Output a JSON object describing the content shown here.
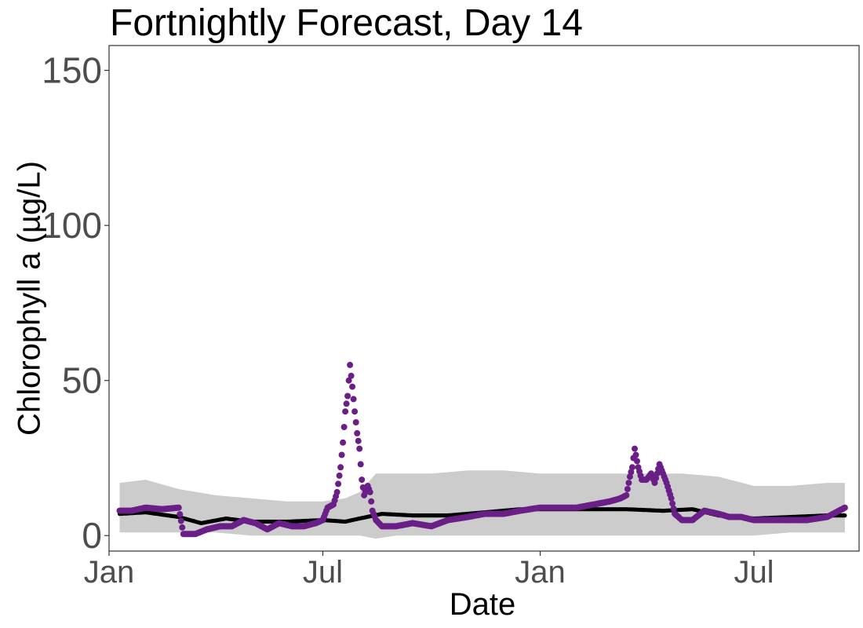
{
  "chart_data": {
    "type": "scatter",
    "title": "Fortnightly Forecast, Day 14",
    "xlabel": "Date",
    "ylabel": "Chlorophyll a (µg/L)",
    "x_range": [
      "2022-01-01",
      "2023-09-28"
    ],
    "ylim": [
      -5,
      158
    ],
    "grid": false,
    "legend": "none",
    "x_ticks": [
      {
        "date": "2022-01-01",
        "label": "Jan"
      },
      {
        "date": "2022-07-01",
        "label": "Jul"
      },
      {
        "date": "2023-01-01",
        "label": "Jan"
      },
      {
        "date": "2023-07-01",
        "label": "Jul"
      }
    ],
    "y_ticks": [
      0,
      50,
      100,
      150
    ],
    "colors": {
      "interval": "#cccccc",
      "forecast_mean": "#000000",
      "observed": "#6a1f87"
    },
    "series": [
      {
        "kind": "interval",
        "x": [
          "2022-01-10",
          "2022-02-01",
          "2022-03-01",
          "2022-04-01",
          "2022-05-01",
          "2022-06-01",
          "2022-07-01",
          "2022-07-20",
          "2022-08-01",
          "2022-08-15",
          "2022-09-01",
          "2022-10-01",
          "2022-11-01",
          "2022-12-01",
          "2023-01-01",
          "2023-02-01",
          "2023-03-01",
          "2023-04-01",
          "2023-05-01",
          "2023-06-01",
          "2023-07-01",
          "2023-08-01",
          "2023-09-01",
          "2023-09-16"
        ],
        "lower": [
          1,
          1,
          1,
          1,
          0,
          0,
          0,
          0,
          0,
          -1,
          0,
          0,
          0,
          0,
          0,
          0,
          0,
          0,
          0,
          0,
          0,
          1,
          1,
          1
        ],
        "upper": [
          17,
          18,
          15,
          13,
          12,
          11,
          11,
          12,
          14,
          20,
          20,
          20,
          21,
          21,
          20,
          20,
          20,
          20,
          20,
          19,
          16,
          16,
          17,
          17
        ]
      },
      {
        "kind": "forecast_mean",
        "x": [
          "2022-01-10",
          "2022-02-01",
          "2022-03-01",
          "2022-03-20",
          "2022-04-10",
          "2022-05-01",
          "2022-06-01",
          "2022-07-01",
          "2022-07-20",
          "2022-08-01",
          "2022-08-20",
          "2022-09-15",
          "2022-10-15",
          "2022-11-15",
          "2022-12-15",
          "2023-01-15",
          "2023-02-15",
          "2023-03-15",
          "2023-04-15",
          "2023-05-10",
          "2023-06-01",
          "2023-07-01",
          "2023-08-01",
          "2023-09-01",
          "2023-09-16"
        ],
        "y": [
          7,
          7.5,
          6,
          4,
          5.5,
          4.5,
          4.5,
          5,
          4.5,
          5.5,
          7,
          6.5,
          6.5,
          7.5,
          8.5,
          8.5,
          8.5,
          8.5,
          8,
          8.5,
          6.5,
          5.5,
          6,
          6.5,
          6.5
        ]
      },
      {
        "kind": "observed",
        "x": [
          "2022-01-10",
          "2022-01-20",
          "2022-02-01",
          "2022-02-15",
          "2022-03-01",
          "2022-03-05",
          "2022-03-15",
          "2022-03-25",
          "2022-04-05",
          "2022-04-15",
          "2022-04-25",
          "2022-05-05",
          "2022-05-15",
          "2022-05-25",
          "2022-06-05",
          "2022-06-15",
          "2022-06-25",
          "2022-07-01",
          "2022-07-05",
          "2022-07-10",
          "2022-07-13",
          "2022-07-16",
          "2022-07-18",
          "2022-07-20",
          "2022-07-22",
          "2022-07-24",
          "2022-07-26",
          "2022-07-28",
          "2022-07-30",
          "2022-08-01",
          "2022-08-03",
          "2022-08-05",
          "2022-08-08",
          "2022-08-10",
          "2022-08-12",
          "2022-08-15",
          "2022-08-20",
          "2022-09-01",
          "2022-09-15",
          "2022-10-01",
          "2022-10-15",
          "2022-11-01",
          "2022-11-15",
          "2022-12-01",
          "2022-12-15",
          "2023-01-01",
          "2023-01-15",
          "2023-02-01",
          "2023-02-15",
          "2023-03-01",
          "2023-03-10",
          "2023-03-15",
          "2023-03-18",
          "2023-03-20",
          "2023-03-22",
          "2023-03-25",
          "2023-03-28",
          "2023-04-01",
          "2023-04-05",
          "2023-04-08",
          "2023-04-12",
          "2023-04-15",
          "2023-04-18",
          "2023-04-22",
          "2023-04-25",
          "2023-05-01",
          "2023-05-10",
          "2023-05-20",
          "2023-06-01",
          "2023-06-10",
          "2023-06-20",
          "2023-07-01",
          "2023-07-15",
          "2023-08-01",
          "2023-08-15",
          "2023-09-01",
          "2023-09-16"
        ],
        "y": [
          8,
          8,
          9,
          8.5,
          9,
          0.5,
          0.5,
          2,
          3,
          3,
          5,
          4,
          2,
          4,
          3,
          3,
          4,
          5,
          9,
          10,
          14,
          22,
          30,
          40,
          45,
          55,
          48,
          40,
          33,
          28,
          18,
          13,
          16,
          14,
          8,
          5,
          3,
          3,
          4,
          3,
          5,
          6,
          7,
          7,
          8,
          9,
          9,
          9,
          10,
          11,
          12,
          13,
          19,
          22,
          28,
          22,
          18,
          18,
          20,
          17,
          23,
          20,
          17,
          12,
          7,
          5,
          5,
          8,
          7,
          6,
          6,
          5,
          5,
          5,
          5,
          6,
          9
        ]
      }
    ]
  }
}
